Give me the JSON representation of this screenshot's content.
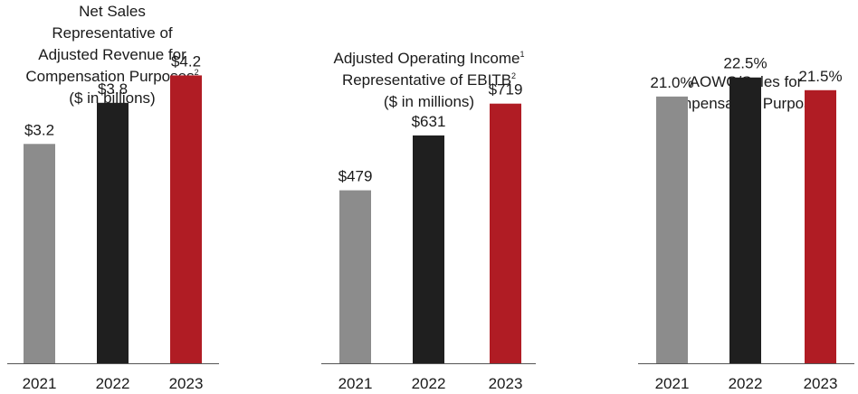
{
  "chart_data": [
    {
      "type": "bar",
      "title_lines": [
        {
          "text": "Net Sales",
          "sup": ""
        },
        {
          "text": "Representative of",
          "sup": ""
        },
        {
          "text": "Adjusted Revenue for",
          "sup": ""
        },
        {
          "text": "Compensation Purposes",
          "sup": "2"
        },
        {
          "text": "($ in billions)",
          "sup": ""
        }
      ],
      "categories": [
        "2021",
        "2022",
        "2023"
      ],
      "values": [
        3.2,
        3.8,
        4.2
      ],
      "value_labels": [
        "$3.2",
        "$3.8",
        "$4.2"
      ],
      "colors": [
        "#8c8c8c",
        "#1f1f1f",
        "#b01c24"
      ],
      "xlabel": "",
      "ylabel": "",
      "ylim": [
        0,
        5.3
      ]
    },
    {
      "type": "bar",
      "title_lines": [
        {
          "text": "Adjusted Operating Income",
          "sup": "1"
        },
        {
          "text": "Representative of EBITB",
          "sup": "2"
        },
        {
          "text": "($ in millions)",
          "sup": ""
        }
      ],
      "categories": [
        "2021",
        "2022",
        "2023"
      ],
      "values": [
        479,
        631,
        719
      ],
      "value_labels": [
        "$479",
        "$631",
        "$719"
      ],
      "colors": [
        "#8c8c8c",
        "#1f1f1f",
        "#b01c24"
      ],
      "xlabel": "",
      "ylabel": "",
      "ylim": [
        0,
        1006
      ]
    },
    {
      "type": "bar",
      "title_lines": [
        {
          "text": "AOWC/Sales for",
          "sup": ""
        },
        {
          "text": "Compensation Purposes",
          "sup": "2"
        }
      ],
      "categories": [
        "2021",
        "2022",
        "2023"
      ],
      "values": [
        21.0,
        22.5,
        21.5
      ],
      "value_labels": [
        "21.0%",
        "22.5%",
        "21.5%"
      ],
      "colors": [
        "#8c8c8c",
        "#1f1f1f",
        "#b01c24"
      ],
      "xlabel": "",
      "ylabel": "",
      "ylim": [
        0,
        28.6
      ]
    }
  ]
}
